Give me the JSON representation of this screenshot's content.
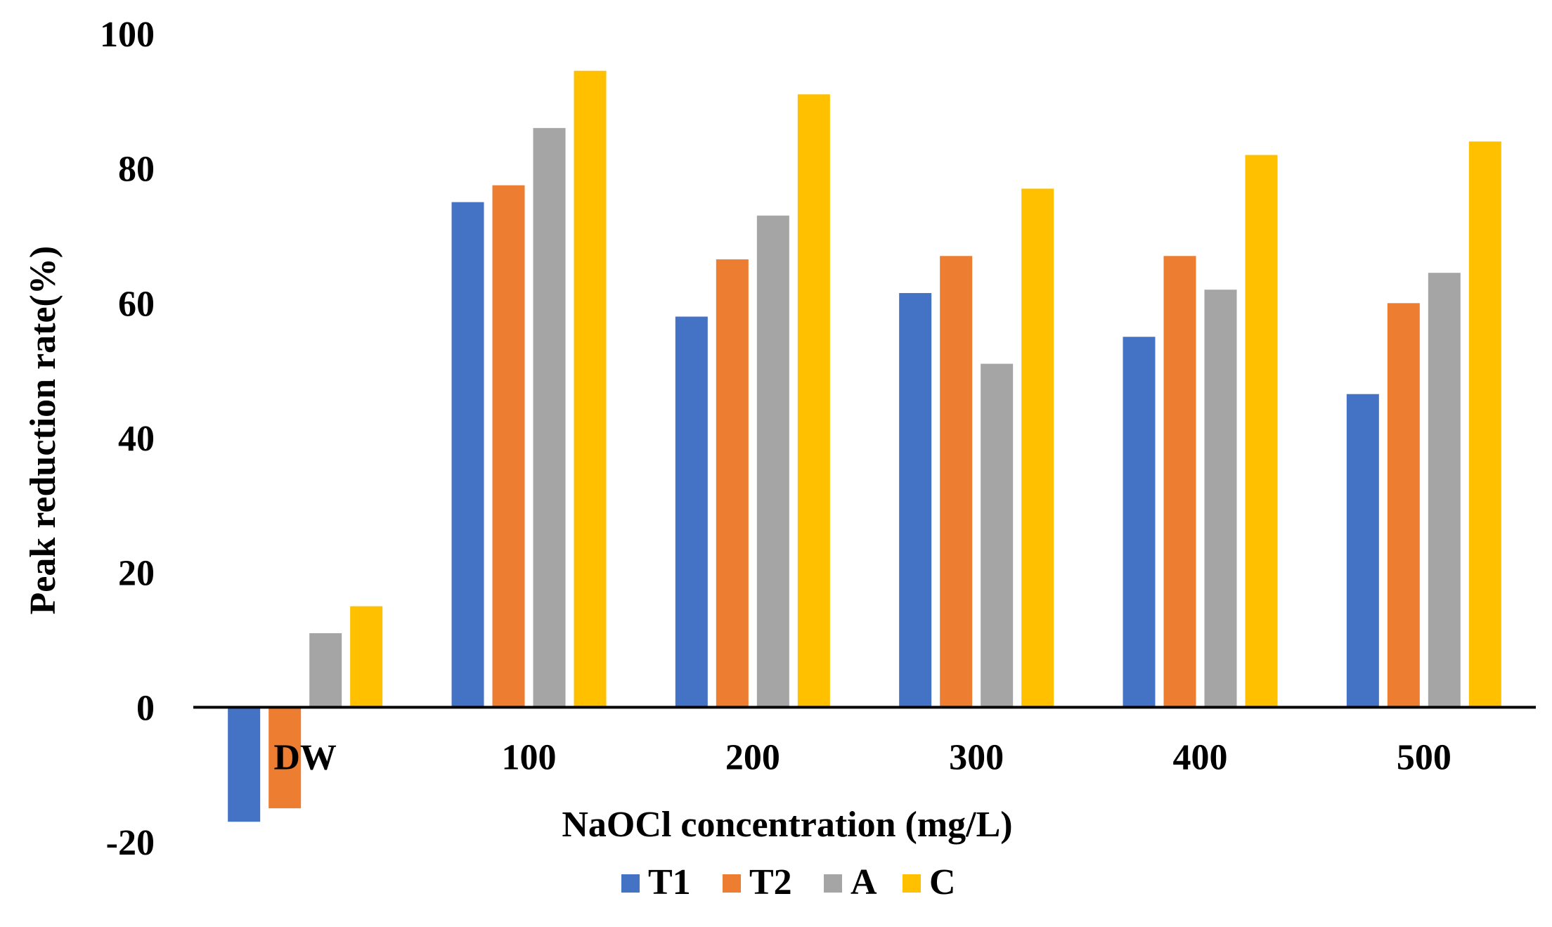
{
  "chart_data": {
    "type": "bar",
    "title": "",
    "xlabel": "NaOCl concentration (mg/L)",
    "ylabel": "Peak reduction rate(%)",
    "ylim": [
      -20,
      100
    ],
    "yticks": [
      -20,
      0,
      20,
      40,
      60,
      80,
      100
    ],
    "grid": false,
    "legend_position": "bottom",
    "categories": [
      "DW",
      "100",
      "200",
      "300",
      "400",
      "500"
    ],
    "series": [
      {
        "name": "T1",
        "color": "#4472C4",
        "values": [
          -17,
          75,
          58,
          61.5,
          55,
          46.5
        ]
      },
      {
        "name": "T2",
        "color": "#ED7D31",
        "values": [
          -15,
          77.5,
          66.5,
          67,
          67,
          60
        ]
      },
      {
        "name": "A",
        "color": "#A5A5A5",
        "values": [
          11,
          86,
          73,
          51,
          62,
          64.5
        ]
      },
      {
        "name": "C",
        "color": "#FFC000",
        "values": [
          15,
          94.5,
          91,
          77,
          82,
          84
        ]
      }
    ]
  }
}
